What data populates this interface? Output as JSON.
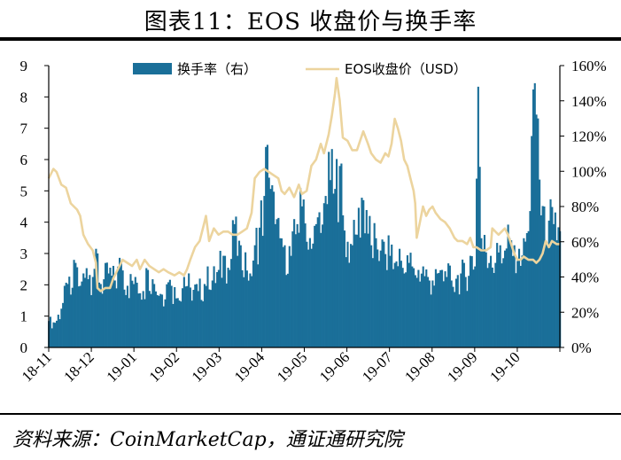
{
  "title": "图表11：EOS 收盘价与换手率",
  "source": "资料来源：CoinMarketCap，通证通研究院",
  "colors": {
    "turnover": "#1a6f99",
    "price": "#ecd49e",
    "rule": "#000000"
  },
  "chart_data": {
    "type": "bar+line",
    "x_tick_labels": [
      "18-11",
      "18-12",
      "19-01",
      "19-02",
      "19-03",
      "19-04",
      "19-05",
      "19-06",
      "19-07",
      "19-08",
      "19-09",
      "19-10"
    ],
    "left_axis": {
      "ticks": [
        "0",
        "1",
        "2",
        "3",
        "4",
        "5",
        "6",
        "7",
        "8",
        "9"
      ],
      "ylim": [
        0,
        9
      ],
      "unit": "USD"
    },
    "right_axis": {
      "ticks": [
        "0%",
        "20%",
        "40%",
        "60%",
        "80%",
        "100%",
        "120%",
        "140%",
        "160%"
      ],
      "ylim": [
        0,
        160
      ]
    },
    "legend": {
      "position": "top-center",
      "turnover_label": "换手率（右）",
      "price_label": "EOS收盘价（USD）"
    },
    "series": [
      {
        "name": "换手率（右）",
        "kind": "bar",
        "axis": "right",
        "unit": "%",
        "points": [
          [
            0,
            15
          ],
          [
            4,
            14
          ],
          [
            8,
            22
          ],
          [
            12,
            36
          ],
          [
            14,
            30
          ],
          [
            17,
            48
          ],
          [
            20,
            35
          ],
          [
            24,
            45
          ],
          [
            28,
            40
          ],
          [
            30,
            56
          ],
          [
            33,
            36
          ],
          [
            38,
            42
          ],
          [
            42,
            38
          ],
          [
            46,
            48
          ],
          [
            50,
            35
          ],
          [
            55,
            40
          ],
          [
            60,
            32
          ],
          [
            63,
            44
          ],
          [
            67,
            36
          ],
          [
            72,
            30
          ],
          [
            76,
            37
          ],
          [
            78,
            35
          ],
          [
            82,
            28
          ],
          [
            86,
            40
          ],
          [
            90,
            34
          ],
          [
            95,
            32
          ],
          [
            99,
            36
          ],
          [
            101,
            46
          ],
          [
            104,
            38
          ],
          [
            108,
            44
          ],
          [
            112,
            52
          ],
          [
            115,
            44
          ],
          [
            118,
            70
          ],
          [
            120,
            52
          ],
          [
            122,
            58
          ],
          [
            125,
            54
          ],
          [
            128,
            42
          ],
          [
            131,
            58
          ],
          [
            134,
            68
          ],
          [
            137,
            86
          ],
          [
            139,
            115
          ],
          [
            141,
            90
          ],
          [
            144,
            70
          ],
          [
            147,
            62
          ],
          [
            150,
            58
          ],
          [
            154,
            52
          ],
          [
            158,
            70
          ],
          [
            162,
            84
          ],
          [
            164,
            60
          ],
          [
            167,
            56
          ],
          [
            170,
            70
          ],
          [
            173,
            65
          ],
          [
            176,
            86
          ],
          [
            179,
            95
          ],
          [
            182,
            90
          ],
          [
            185,
            103
          ],
          [
            187,
            75
          ],
          [
            190,
            60
          ],
          [
            193,
            58
          ],
          [
            196,
            64
          ],
          [
            199,
            85
          ],
          [
            202,
            78
          ],
          [
            205,
            58
          ],
          [
            208,
            62
          ],
          [
            211,
            55
          ],
          [
            214,
            53
          ],
          [
            217,
            52
          ],
          [
            220,
            48
          ],
          [
            223,
            56
          ],
          [
            226,
            42
          ],
          [
            229,
            48
          ],
          [
            232,
            45
          ],
          [
            235,
            44
          ],
          [
            238,
            46
          ],
          [
            241,
            40
          ],
          [
            244,
            38
          ],
          [
            247,
            42
          ],
          [
            250,
            44
          ],
          [
            253,
            40
          ],
          [
            256,
            38
          ],
          [
            259,
            39
          ],
          [
            262,
            42
          ],
          [
            265,
            40
          ],
          [
            268,
            52
          ],
          [
            271,
            46
          ],
          [
            273,
            148
          ],
          [
            275,
            62
          ],
          [
            278,
            54
          ],
          [
            281,
            52
          ],
          [
            284,
            48
          ],
          [
            287,
            58
          ],
          [
            290,
            55
          ],
          [
            293,
            62
          ],
          [
            296,
            58
          ],
          [
            299,
            56
          ],
          [
            302,
            62
          ],
          [
            305,
            66
          ],
          [
            307,
            120
          ],
          [
            309,
            150
          ],
          [
            311,
            130
          ],
          [
            313,
            75
          ],
          [
            315,
            80
          ],
          [
            318,
            72
          ],
          [
            321,
            70
          ],
          [
            325,
            66
          ]
        ]
      },
      {
        "name": "EOS收盘价（USD）",
        "kind": "line",
        "axis": "left",
        "points": [
          [
            0,
            5.4
          ],
          [
            3,
            5.7
          ],
          [
            5,
            5.6
          ],
          [
            8,
            5.2
          ],
          [
            11,
            5.1
          ],
          [
            14,
            4.6
          ],
          [
            16,
            4.5
          ],
          [
            18,
            4.4
          ],
          [
            20,
            4.2
          ],
          [
            22,
            3.6
          ],
          [
            25,
            3.3
          ],
          [
            28,
            3.1
          ],
          [
            30,
            2.7
          ],
          [
            31,
            1.9
          ],
          [
            33,
            1.8
          ],
          [
            36,
            1.9
          ],
          [
            39,
            1.9
          ],
          [
            41,
            2.2
          ],
          [
            44,
            2.5
          ],
          [
            47,
            2.8
          ],
          [
            50,
            2.7
          ],
          [
            53,
            2.6
          ],
          [
            56,
            2.8
          ],
          [
            58,
            2.5
          ],
          [
            61,
            2.8
          ],
          [
            64,
            2.6
          ],
          [
            67,
            2.5
          ],
          [
            70,
            2.4
          ],
          [
            73,
            2.5
          ],
          [
            76,
            2.4
          ],
          [
            80,
            2.3
          ],
          [
            83,
            2.4
          ],
          [
            86,
            2.3
          ],
          [
            88,
            2.5
          ],
          [
            90,
            2.8
          ],
          [
            93,
            3.2
          ],
          [
            96,
            3.4
          ],
          [
            99,
            4.0
          ],
          [
            100,
            4.2
          ],
          [
            102,
            3.4
          ],
          [
            105,
            3.8
          ],
          [
            108,
            3.6
          ],
          [
            111,
            3.7
          ],
          [
            114,
            3.7
          ],
          [
            117,
            3.6
          ],
          [
            120,
            3.6
          ],
          [
            123,
            3.7
          ],
          [
            126,
            3.8
          ],
          [
            129,
            4.3
          ],
          [
            131,
            5.4
          ],
          [
            134,
            5.6
          ],
          [
            137,
            5.7
          ],
          [
            140,
            5.6
          ],
          [
            143,
            5.5
          ],
          [
            146,
            5.4
          ],
          [
            148,
            5.0
          ],
          [
            150,
            4.9
          ],
          [
            153,
            5.1
          ],
          [
            156,
            4.8
          ],
          [
            159,
            5.2
          ],
          [
            161,
            4.9
          ],
          [
            164,
            5.0
          ],
          [
            167,
            5.8
          ],
          [
            170,
            6.0
          ],
          [
            173,
            6.5
          ],
          [
            175,
            6.2
          ],
          [
            178,
            6.8
          ],
          [
            180,
            7.4
          ],
          [
            182,
            8.1
          ],
          [
            183,
            8.6
          ],
          [
            185,
            7.9
          ],
          [
            187,
            6.7
          ],
          [
            190,
            6.6
          ],
          [
            193,
            6.3
          ],
          [
            196,
            6.3
          ],
          [
            198,
            6.6
          ],
          [
            200,
            6.9
          ],
          [
            203,
            6.5
          ],
          [
            205,
            6.2
          ],
          [
            208,
            6.0
          ],
          [
            211,
            5.9
          ],
          [
            214,
            6.2
          ],
          [
            216,
            6.1
          ],
          [
            218,
            6.5
          ],
          [
            220,
            7.3
          ],
          [
            222,
            7.0
          ],
          [
            224,
            6.6
          ],
          [
            226,
            6.0
          ],
          [
            228,
            5.8
          ],
          [
            230,
            5.4
          ],
          [
            232,
            5.0
          ],
          [
            233,
            4.6
          ],
          [
            234,
            3.5
          ],
          [
            236,
            4.0
          ],
          [
            238,
            4.5
          ],
          [
            240,
            4.2
          ],
          [
            242,
            4.4
          ],
          [
            244,
            4.5
          ],
          [
            246,
            4.3
          ],
          [
            249,
            4.1
          ],
          [
            252,
            4.0
          ],
          [
            255,
            3.8
          ],
          [
            258,
            3.5
          ],
          [
            260,
            3.4
          ],
          [
            263,
            3.4
          ],
          [
            266,
            3.3
          ],
          [
            268,
            3.5
          ],
          [
            270,
            3.2
          ],
          [
            272,
            3.2
          ],
          [
            275,
            3.1
          ],
          [
            278,
            3.1
          ],
          [
            281,
            3.2
          ],
          [
            282,
            3.8
          ],
          [
            284,
            3.7
          ],
          [
            286,
            3.6
          ],
          [
            288,
            3.7
          ],
          [
            290,
            3.8
          ],
          [
            292,
            3.6
          ],
          [
            294,
            3.3
          ],
          [
            296,
            3.0
          ],
          [
            298,
            2.8
          ],
          [
            300,
            2.8
          ],
          [
            302,
            2.9
          ],
          [
            305,
            2.8
          ],
          [
            308,
            2.8
          ],
          [
            310,
            2.7
          ],
          [
            312,
            2.8
          ],
          [
            314,
            3.0
          ],
          [
            316,
            3.4
          ],
          [
            318,
            3.2
          ],
          [
            320,
            3.4
          ],
          [
            323,
            3.3
          ],
          [
            325,
            3.3
          ]
        ]
      }
    ]
  }
}
